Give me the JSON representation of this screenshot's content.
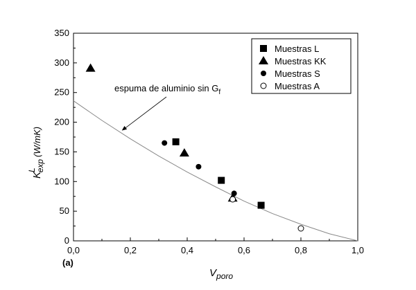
{
  "chart_data": {
    "type": "scatter",
    "panel_label": "(a)",
    "xlabel": {
      "main": "V",
      "sub": "poro"
    },
    "ylabel": {
      "main": "K",
      "sup": "L",
      "sub": "exp",
      "units": "(W/mK)"
    },
    "xlim": [
      0.0,
      1.0
    ],
    "ylim": [
      0,
      350
    ],
    "xticks": [
      {
        "value": 0.0,
        "label": "0,0"
      },
      {
        "value": 0.2,
        "label": "0,2"
      },
      {
        "value": 0.4,
        "label": "0,4"
      },
      {
        "value": 0.6,
        "label": "0,6"
      },
      {
        "value": 0.8,
        "label": "0,8"
      },
      {
        "value": 1.0,
        "label": "1,0"
      }
    ],
    "yticks": [
      {
        "value": 0,
        "label": "0"
      },
      {
        "value": 50,
        "label": "50"
      },
      {
        "value": 100,
        "label": "100"
      },
      {
        "value": 150,
        "label": "150"
      },
      {
        "value": 200,
        "label": "200"
      },
      {
        "value": 250,
        "label": "250"
      },
      {
        "value": 300,
        "label": "300"
      },
      {
        "value": 350,
        "label": "350"
      }
    ],
    "grid": false,
    "legend_position": "top-right",
    "series": [
      {
        "name": "Muestras L",
        "marker": "square",
        "points": [
          [
            0.36,
            167
          ],
          [
            0.52,
            102
          ],
          [
            0.66,
            60
          ]
        ]
      },
      {
        "name": "Muestras KK",
        "marker": "triangle",
        "points": [
          [
            0.06,
            291
          ],
          [
            0.39,
            148
          ],
          [
            0.56,
            72
          ]
        ]
      },
      {
        "name": "Muestras S",
        "marker": "circle-filled",
        "points": [
          [
            0.32,
            165
          ],
          [
            0.44,
            125
          ],
          [
            0.565,
            80
          ]
        ]
      },
      {
        "name": "Muestras A",
        "marker": "circle-open",
        "points": [
          [
            0.56,
            70
          ],
          [
            0.8,
            21
          ]
        ]
      }
    ],
    "model_curve": {
      "points": [
        [
          0.0,
          236
        ],
        [
          0.1,
          203
        ],
        [
          0.2,
          172
        ],
        [
          0.3,
          143
        ],
        [
          0.4,
          116
        ],
        [
          0.5,
          91
        ],
        [
          0.6,
          67
        ],
        [
          0.7,
          46
        ],
        [
          0.8,
          28
        ],
        [
          0.9,
          12
        ],
        [
          1.0,
          0
        ]
      ],
      "color": "#888888"
    },
    "annotation": {
      "text": "espuma de aluminio sin G",
      "sub": "f",
      "arrow_to": [
        0.17,
        186
      ]
    }
  }
}
